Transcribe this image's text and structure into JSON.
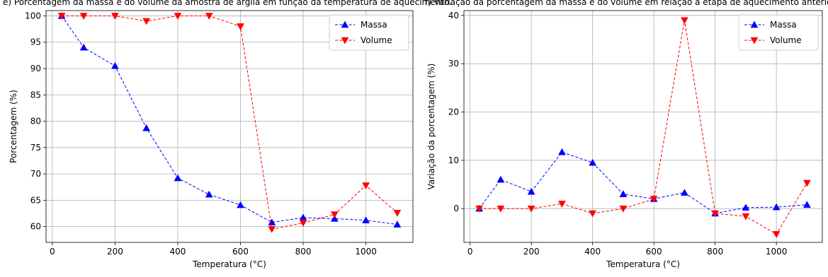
{
  "header": {
    "caption_left": "e) Porcentagem da massa e do volume da amostra de argila em função da temperatura de aquecimento.",
    "caption_right": "f) Variação da porcentagem da massa e do volume em relação à etapa de aquecimento anterior."
  },
  "chart_data": [
    {
      "type": "line",
      "title": "",
      "xlabel": "Temperatura (°C)",
      "ylabel": "Porcentagem (%)",
      "xlim": [
        -20,
        1150
      ],
      "ylim": [
        57,
        101
      ],
      "xticks": [
        0,
        200,
        400,
        600,
        800,
        1000
      ],
      "yticks": [
        60,
        65,
        70,
        75,
        80,
        85,
        90,
        95,
        100
      ],
      "grid": true,
      "legend_position": "top-right",
      "x": [
        30,
        100,
        200,
        300,
        400,
        500,
        600,
        700,
        800,
        900,
        1000,
        1100
      ],
      "series": [
        {
          "name": "Massa",
          "color": "#0000ff",
          "marker": "triangle-up",
          "line_style": "dashed",
          "values": [
            100,
            94,
            90.5,
            78.7,
            69.2,
            66.1,
            64.1,
            60.8,
            61.7,
            61.5,
            61.2,
            60.4
          ]
        },
        {
          "name": "Volume",
          "color": "#ff0000",
          "marker": "triangle-down",
          "line_style": "dashed",
          "values": [
            100,
            100,
            100,
            99,
            100,
            100,
            98,
            59.5,
            60.7,
            62.3,
            67.8,
            62.6
          ]
        }
      ]
    },
    {
      "type": "line",
      "title": "",
      "xlabel": "Temperatura (°C)",
      "ylabel": "Variação da porcentagem (%)",
      "xlim": [
        -20,
        1150
      ],
      "ylim": [
        -7,
        41
      ],
      "xticks": [
        0,
        200,
        400,
        600,
        800,
        1000
      ],
      "yticks": [
        0,
        10,
        20,
        30,
        40
      ],
      "grid": true,
      "legend_position": "top-right",
      "x": [
        30,
        100,
        200,
        300,
        400,
        500,
        600,
        700,
        800,
        900,
        1000,
        1100
      ],
      "series": [
        {
          "name": "Massa",
          "color": "#0000ff",
          "marker": "triangle-up",
          "line_style": "dashed",
          "values": [
            0,
            6,
            3.5,
            11.7,
            9.5,
            3,
            2,
            3.3,
            -1,
            0.2,
            0.3,
            0.8
          ]
        },
        {
          "name": "Volume",
          "color": "#ff0000",
          "marker": "triangle-down",
          "line_style": "dashed",
          "values": [
            0,
            0,
            0,
            1,
            -1,
            0,
            2,
            39,
            -1,
            -1.6,
            -5.3,
            5.3
          ]
        }
      ]
    }
  ]
}
